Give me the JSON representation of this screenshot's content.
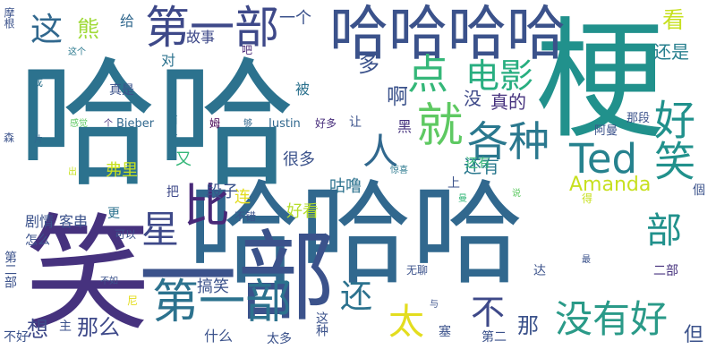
{
  "palette": {
    "purple": "#440154",
    "indigo": "#3b528b",
    "steel": "#2c728e",
    "teal": "#21918c",
    "green": "#28ae80",
    "lime": "#5ec962",
    "yellow": "#c7e020",
    "gold": "#e3dd1f"
  },
  "words": [
    "哈哈",
    "哈哈哈",
    "笑",
    "一部",
    "梗",
    "哈哈哈哈",
    "第一部",
    "比",
    "第一部",
    "就",
    "各种",
    "人",
    "Ted",
    "好笑",
    "电影",
    "点",
    "星",
    "熊",
    "这",
    "看",
    "还是",
    "给",
    "一个",
    "故事",
    "吧",
    "对",
    "多",
    "啊",
    "没",
    "真的",
    "还有",
    "黑",
    "让",
    "Bieber",
    "Justin",
    "好多",
    "被",
    "真是",
    "成",
    "摩根",
    "这个",
    "感觉",
    "个",
    "而且",
    "姆",
    "够",
    "那段",
    "阿曼",
    "森",
    "片",
    "出",
    "弗里",
    "又",
    "很多",
    "咕噜",
    "Amanda",
    "段子",
    "连",
    "上",
    "惊喜",
    "曼",
    "说",
    "得",
    "個",
    "剧情",
    "客串",
    "把",
    "更",
    "怎么",
    "不错",
    "好看",
    "二部",
    "第二部",
    "可以",
    "不如",
    "搞笑",
    "无聊",
    "最",
    "达",
    "与",
    "尼",
    "主",
    "那么",
    "想",
    "还",
    "太",
    "不",
    "没有好",
    "那",
    "但",
    "什么",
    "太多",
    "这种",
    "塞",
    "第二",
    "不好",
    "还有",
    "部"
  ]
}
